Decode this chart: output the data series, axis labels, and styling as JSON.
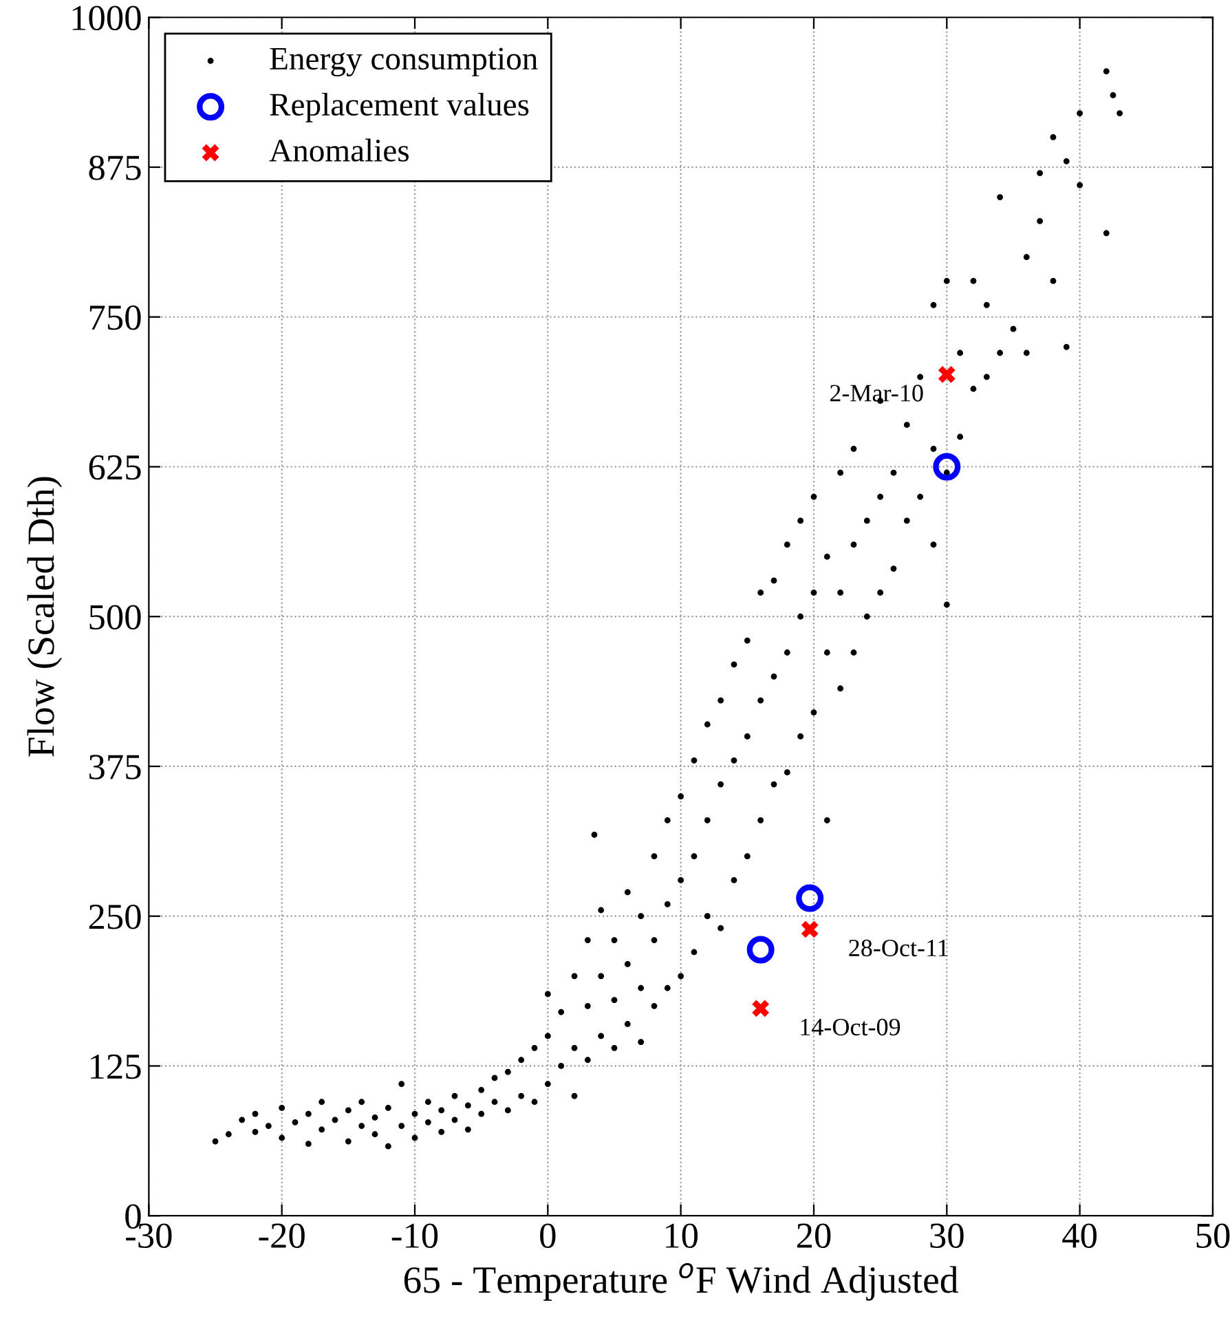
{
  "chart_data": {
    "type": "scatter",
    "xlabel": "65 - Temperature $^{o}$F Wind Adjusted",
    "ylabel": "Flow (Scaled Dth)",
    "xlim": [
      -30,
      50
    ],
    "xticks": [
      -30,
      -20,
      -10,
      0,
      10,
      20,
      30,
      40,
      50
    ],
    "ylim": [
      0,
      1000
    ],
    "yticks": [
      0,
      125,
      250,
      375,
      500,
      625,
      750,
      875,
      1000
    ],
    "grid": true,
    "legend": "top left",
    "series": [
      {
        "name": "Energy consumption",
        "color": "#000000",
        "marker": "circle",
        "x": [
          -25,
          -24,
          -23,
          -22,
          -22,
          -21,
          -20,
          -20,
          -19,
          -18,
          -18,
          -17,
          -17,
          -16,
          -15,
          -15,
          -14,
          -14,
          -13,
          -13,
          -12,
          -12,
          -11,
          -11,
          -10,
          -10,
          -9,
          -9,
          -8,
          -8,
          -7,
          -7,
          -6,
          -6,
          -5,
          -5,
          -4,
          -4,
          -3,
          -3,
          -2,
          -2,
          -1,
          -1,
          0,
          0,
          0,
          1,
          1,
          2,
          2,
          2,
          3,
          3,
          3,
          3.5,
          4,
          4,
          4,
          5,
          5,
          5,
          6,
          6,
          6,
          7,
          7,
          7,
          8,
          8,
          8,
          9,
          9,
          9,
          10,
          10,
          10,
          11,
          11,
          11,
          12,
          12,
          12,
          13,
          13,
          13,
          14,
          14,
          14,
          15,
          15,
          15,
          16,
          16,
          16,
          17,
          17,
          17,
          18,
          18,
          18,
          19,
          19,
          19,
          20,
          20,
          20,
          21,
          21,
          21,
          22,
          22,
          22,
          23,
          23,
          23,
          24,
          24,
          25,
          25,
          25,
          26,
          26,
          27,
          27,
          28,
          28,
          29,
          29,
          29,
          30,
          30,
          30,
          31,
          31,
          32,
          32,
          33,
          33,
          34,
          34,
          35,
          36,
          36,
          37,
          37,
          38,
          38,
          39,
          39,
          40,
          40,
          42,
          42,
          42.5,
          43
        ],
        "values": [
          62,
          68,
          80,
          85,
          70,
          75,
          90,
          65,
          78,
          85,
          60,
          95,
          72,
          80,
          88,
          62,
          75,
          95,
          68,
          82,
          58,
          90,
          75,
          110,
          85,
          65,
          95,
          78,
          88,
          70,
          100,
          80,
          92,
          72,
          105,
          85,
          95,
          115,
          88,
          120,
          100,
          130,
          95,
          140,
          110,
          150,
          185,
          125,
          170,
          100,
          140,
          200,
          130,
          175,
          230,
          318,
          150,
          200,
          255,
          140,
          180,
          230,
          160,
          210,
          270,
          145,
          190,
          250,
          175,
          230,
          300,
          190,
          260,
          330,
          200,
          280,
          350,
          220,
          300,
          380,
          250,
          330,
          410,
          240,
          360,
          430,
          280,
          380,
          460,
          300,
          400,
          480,
          330,
          430,
          520,
          360,
          450,
          530,
          370,
          470,
          560,
          400,
          500,
          580,
          420,
          520,
          600,
          330,
          470,
          550,
          440,
          520,
          620,
          470,
          560,
          640,
          500,
          580,
          520,
          600,
          680,
          540,
          620,
          580,
          660,
          600,
          700,
          560,
          640,
          760,
          510,
          620,
          780,
          650,
          720,
          690,
          780,
          700,
          760,
          720,
          850,
          740,
          720,
          800,
          830,
          870,
          780,
          900,
          725,
          880,
          860,
          920,
          820,
          955,
          935,
          920
        ]
      },
      {
        "name": "Replacement values",
        "color": "#0000ff",
        "marker": "circle_open",
        "x": [
          16,
          19.7,
          30
        ],
        "values": [
          222,
          265,
          625
        ]
      },
      {
        "name": "Anomalies",
        "color": "#ff0000",
        "marker": "cross",
        "x": [
          16,
          19.7,
          30
        ],
        "values": [
          173,
          239,
          702
        ]
      }
    ],
    "annotations": [
      {
        "text": "14-Oct-09",
        "x": 16,
        "y": 173
      },
      {
        "text": "28-Oct-11",
        "x": 19.7,
        "y": 239
      },
      {
        "text": "2-Mar-10",
        "x": 30,
        "y": 702
      }
    ]
  }
}
